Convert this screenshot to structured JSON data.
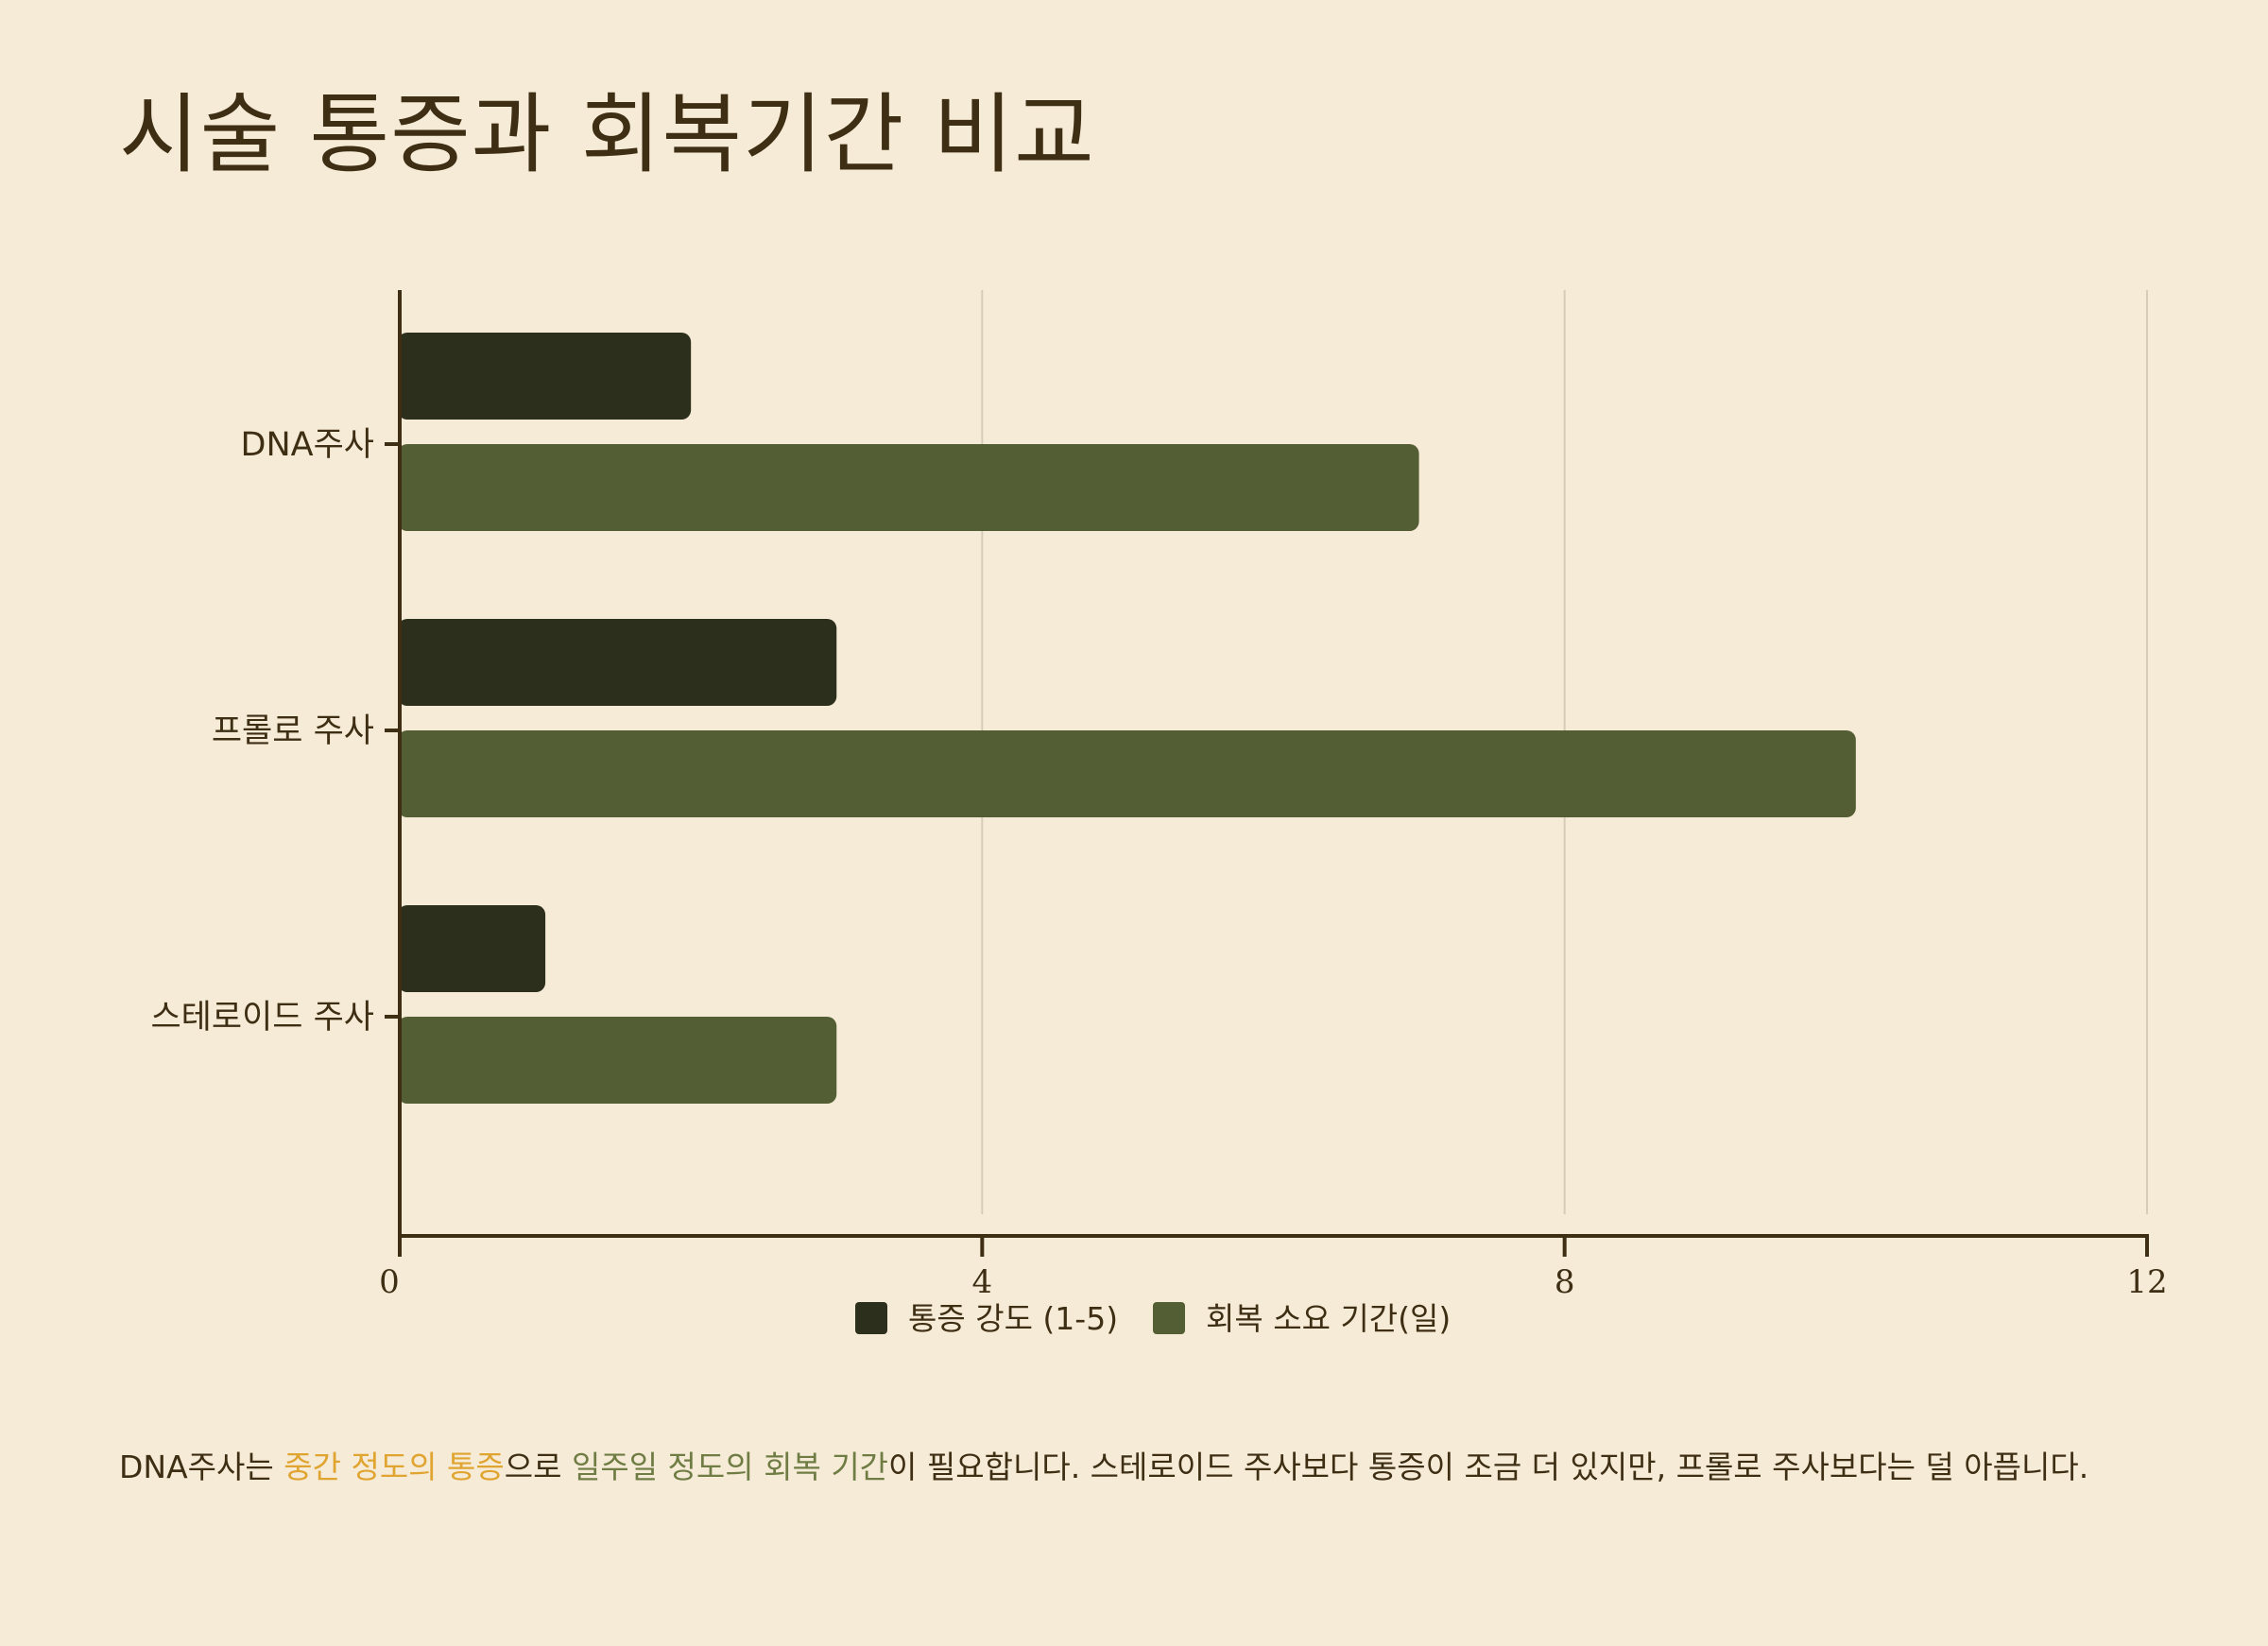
{
  "title": "시술 통증과 회복기간 비교",
  "colors": {
    "background": "#f6ebd6",
    "text": "#3d2e14",
    "axis": "#3d2e14",
    "grid": "#d6cdb9",
    "pain": "#2c2f1c",
    "recovery": "#545e34",
    "highlight_pain": "#e0a431",
    "highlight_recovery": "#6f7d45"
  },
  "chart_data": {
    "type": "bar",
    "orientation": "horizontal",
    "categories": [
      "DNA주사",
      "프롤로 주사",
      "스테로이드 주사"
    ],
    "series": [
      {
        "name": "통증 강도 (1-5)",
        "values": [
          2,
          3,
          1
        ],
        "color": "#2c2f1c"
      },
      {
        "name": "회복 소요 기간(일)",
        "values": [
          7,
          10,
          3
        ],
        "color": "#545e34"
      }
    ],
    "xlim": [
      0,
      12
    ],
    "xticks": [
      0,
      4,
      8,
      12
    ],
    "xlabel": "",
    "ylabel": "",
    "grid": "vertical",
    "legend": "bottom-center"
  },
  "caption": {
    "part1": "DNA주사는 ",
    "highlight1": "중간 정도의 통증",
    "part2": "으로 ",
    "highlight2": "일주일 정도의 회복 기간",
    "part3": "이 필요합니다. 스테로이드 주사보다 통증이 조금 더 있지만, 프롤로 주사보다는 덜 아픕니다."
  }
}
